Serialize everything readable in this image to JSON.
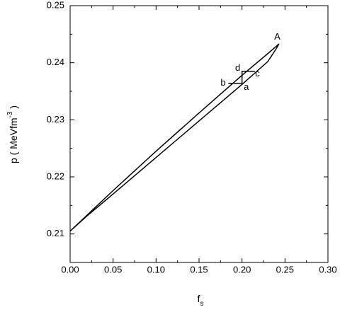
{
  "chart_data": {
    "type": "line",
    "xlabel": [
      "f",
      "s"
    ],
    "ylabel": [
      "p ( MeVfm",
      "-3",
      " )"
    ],
    "xlim": [
      0,
      0.3
    ],
    "ylim": [
      0.205,
      0.25
    ],
    "xticks": [
      {
        "value": 0,
        "label": "0.00"
      },
      0.05,
      {
        "value": 0.1,
        "label": "0.10"
      },
      0.15,
      {
        "value": 0.2,
        "label": "0.20"
      },
      0.25,
      {
        "value": 0.3,
        "label": "0.30"
      }
    ],
    "yticks": [
      0.21,
      0.22,
      0.23,
      0.24,
      0.25
    ],
    "series": [
      {
        "color": "#000000",
        "x": [
          0,
          0.05,
          0.1,
          0.15,
          0.2,
          0.23,
          0.24,
          0.243,
          0.24,
          0.23,
          0.2,
          0.15,
          0.1,
          0.05,
          0.02,
          0
        ],
        "values": [
          0.2105,
          0.2176,
          0.2245,
          0.2312,
          0.2378,
          0.2416,
          0.2429,
          0.2433,
          0.2425,
          0.2402,
          0.2362,
          0.2298,
          0.2234,
          0.217,
          0.2132,
          0.2105
        ]
      },
      {
        "color": "#000000",
        "x": [
          0.184,
          0.2,
          0.2,
          0.215
        ],
        "values": [
          0.2364,
          0.2364,
          0.2385,
          0.2385
        ]
      }
    ],
    "annotations": [
      {
        "text": "A",
        "x": 0.241,
        "y": 0.2445
      },
      {
        "text": "a",
        "x": 0.205,
        "y": 0.2357
      },
      {
        "text": "b",
        "x": 0.178,
        "y": 0.2364
      },
      {
        "text": "c",
        "x": 0.218,
        "y": 0.238
      },
      {
        "text": "d",
        "x": 0.195,
        "y": 0.239
      }
    ]
  }
}
